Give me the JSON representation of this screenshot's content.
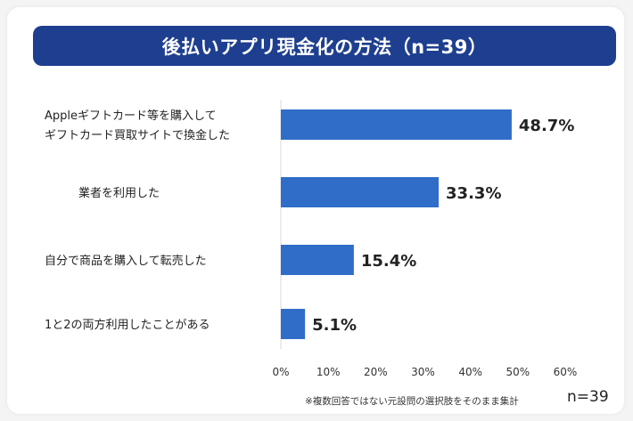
{
  "title": "後払いアプリ現金化の方法（n=39）",
  "note": "※複数回答ではない元設問の選択肢をそのまま集計",
  "n_label": "n=39",
  "colors": {
    "title_bg": "#1e3f8f",
    "bar": "#2f6dc8"
  },
  "chart_data": {
    "type": "bar",
    "orientation": "horizontal",
    "title": "後払いアプリ現金化の方法（n=39）",
    "categories": [
      [
        "Appleギフトカード等を購入して",
        "ギフトカード買取サイトで換金した"
      ],
      [
        "業者を利用した"
      ],
      [
        "自分で商品を購入して転売した"
      ],
      [
        "1と2の両方利用したことがある"
      ]
    ],
    "values": [
      48.7,
      33.3,
      15.4,
      5.1
    ],
    "value_labels": [
      "48.7%",
      "33.3%",
      "15.4%",
      "5.1%"
    ],
    "xlim": [
      0,
      60
    ],
    "xticks": [
      0,
      10,
      20,
      30,
      40,
      50,
      60
    ],
    "xtick_labels": [
      "0%",
      "10%",
      "20%",
      "30%",
      "40%",
      "50%",
      "60%"
    ],
    "grid": false,
    "legend": "none"
  }
}
